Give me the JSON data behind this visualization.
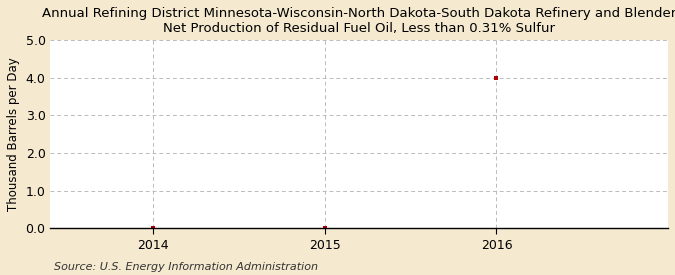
{
  "title_line1": "Annual Refining District Minnesota-Wisconsin-North Dakota-South Dakota Refinery and Blender",
  "title_line2": "Net Production of Residual Fuel Oil, Less than 0.31% Sulfur",
  "ylabel": "Thousand Barrels per Day",
  "source": "Source: U.S. Energy Information Administration",
  "x_data": [
    2014,
    2015,
    2016
  ],
  "y_data": [
    0.0,
    0.0,
    4.0
  ],
  "xlim": [
    2013.4,
    2017.0
  ],
  "ylim": [
    0.0,
    5.0
  ],
  "yticks": [
    0.0,
    1.0,
    2.0,
    3.0,
    4.0,
    5.0
  ],
  "xticks": [
    2014,
    2015,
    2016
  ],
  "marker_color": "#aa0000",
  "marker_size": 3.5,
  "outer_bg_color": "#f5ead0",
  "plot_bg_color": "#ffffff",
  "grid_color": "#bbbbbb",
  "title_fontsize": 9.5,
  "axis_label_fontsize": 8.5,
  "tick_fontsize": 9,
  "source_fontsize": 8
}
